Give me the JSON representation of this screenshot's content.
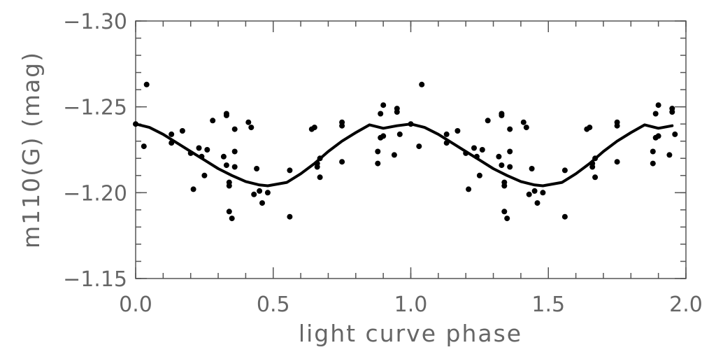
{
  "chart_data": {
    "type": "scatter",
    "title": "",
    "xlabel": "light curve phase",
    "ylabel": "m110(G) (mag)",
    "xlim": [
      0.0,
      2.0
    ],
    "ylim": [
      -1.3,
      -1.15
    ],
    "y_reversed": true,
    "grid": false,
    "x_ticks": [
      0.0,
      0.5,
      1.0,
      1.5,
      2.0
    ],
    "x_tick_labels": [
      "0.0",
      "0.5",
      "1.0",
      "1.5",
      "2.0"
    ],
    "y_ticks": [
      -1.3,
      -1.25,
      -1.2,
      -1.15
    ],
    "y_tick_labels": [
      "−1.30",
      "−1.25",
      "−1.20",
      "−1.15"
    ],
    "x_minor_step": 0.1,
    "y_minor_step": 0.01,
    "point_color": "#000000",
    "line_color": "#000000",
    "series": [
      {
        "kind": "points",
        "x": [
          0.0,
          0.03,
          0.04,
          0.13,
          0.13,
          0.17,
          0.2,
          0.21,
          0.23,
          0.24,
          0.25,
          0.26,
          0.28,
          0.32,
          0.33,
          0.33,
          0.33,
          0.34,
          0.34,
          0.34,
          0.35,
          0.36,
          0.36,
          0.36,
          0.41,
          0.42,
          0.43,
          0.44,
          0.45,
          0.46,
          0.48,
          0.56,
          0.56,
          0.64,
          0.65,
          0.66,
          0.66,
          0.67,
          0.67,
          0.75,
          0.75,
          0.75,
          0.88,
          0.88,
          0.89,
          0.89,
          0.9,
          0.9,
          0.94,
          0.95,
          0.95,
          0.96
        ],
        "y": [
          -1.24,
          -1.227,
          -1.263,
          -1.229,
          -1.234,
          -1.236,
          -1.223,
          -1.202,
          -1.226,
          -1.221,
          -1.21,
          -1.225,
          -1.242,
          -1.221,
          -1.216,
          -1.245,
          -1.246,
          -1.206,
          -1.204,
          -1.189,
          -1.185,
          -1.237,
          -1.224,
          -1.215,
          -1.241,
          -1.238,
          -1.199,
          -1.214,
          -1.201,
          -1.194,
          -1.2,
          -1.213,
          -1.186,
          -1.237,
          -1.238,
          -1.215,
          -1.217,
          -1.22,
          -1.209,
          -1.218,
          -1.241,
          -1.239,
          -1.224,
          -1.217,
          -1.232,
          -1.246,
          -1.251,
          -1.233,
          -1.222,
          -1.249,
          -1.247,
          -1.234
        ]
      },
      {
        "kind": "points",
        "x": [
          1.0,
          1.03,
          1.04,
          1.13,
          1.13,
          1.17,
          1.2,
          1.21,
          1.23,
          1.24,
          1.25,
          1.26,
          1.28,
          1.32,
          1.33,
          1.33,
          1.33,
          1.34,
          1.34,
          1.34,
          1.35,
          1.36,
          1.36,
          1.36,
          1.41,
          1.42,
          1.43,
          1.44,
          1.45,
          1.46,
          1.48,
          1.56,
          1.56,
          1.64,
          1.65,
          1.66,
          1.66,
          1.67,
          1.67,
          1.75,
          1.75,
          1.75,
          1.88,
          1.88,
          1.89,
          1.89,
          1.9,
          1.9,
          1.94,
          1.95,
          1.95,
          1.96
        ],
        "y": [
          -1.24,
          -1.227,
          -1.263,
          -1.229,
          -1.234,
          -1.236,
          -1.223,
          -1.202,
          -1.226,
          -1.221,
          -1.21,
          -1.225,
          -1.242,
          -1.221,
          -1.216,
          -1.245,
          -1.246,
          -1.206,
          -1.204,
          -1.189,
          -1.185,
          -1.237,
          -1.224,
          -1.215,
          -1.241,
          -1.238,
          -1.199,
          -1.214,
          -1.201,
          -1.194,
          -1.2,
          -1.213,
          -1.186,
          -1.237,
          -1.238,
          -1.215,
          -1.217,
          -1.22,
          -1.209,
          -1.218,
          -1.241,
          -1.239,
          -1.224,
          -1.217,
          -1.232,
          -1.246,
          -1.251,
          -1.233,
          -1.222,
          -1.249,
          -1.247,
          -1.234
        ]
      },
      {
        "kind": "line",
        "x": [
          0.0,
          0.05,
          0.1,
          0.15,
          0.2,
          0.25,
          0.3,
          0.35,
          0.4,
          0.45,
          0.48,
          0.55,
          0.6,
          0.65,
          0.7,
          0.75,
          0.8,
          0.85,
          0.9,
          0.95,
          1.0,
          1.05,
          1.1,
          1.15,
          1.2,
          1.25,
          1.3,
          1.35,
          1.4,
          1.45,
          1.48,
          1.55,
          1.6,
          1.65,
          1.7,
          1.75,
          1.8,
          1.85,
          1.9,
          1.95
        ],
        "y": [
          -1.24,
          -1.238,
          -1.234,
          -1.229,
          -1.224,
          -1.219,
          -1.214,
          -1.21,
          -1.2065,
          -1.2045,
          -1.204,
          -1.206,
          -1.211,
          -1.217,
          -1.224,
          -1.23,
          -1.235,
          -1.2395,
          -1.2375,
          -1.239,
          -1.24,
          -1.238,
          -1.234,
          -1.229,
          -1.224,
          -1.219,
          -1.214,
          -1.21,
          -1.2065,
          -1.2045,
          -1.204,
          -1.206,
          -1.211,
          -1.217,
          -1.224,
          -1.23,
          -1.235,
          -1.2395,
          -1.2375,
          -1.239
        ]
      }
    ]
  }
}
